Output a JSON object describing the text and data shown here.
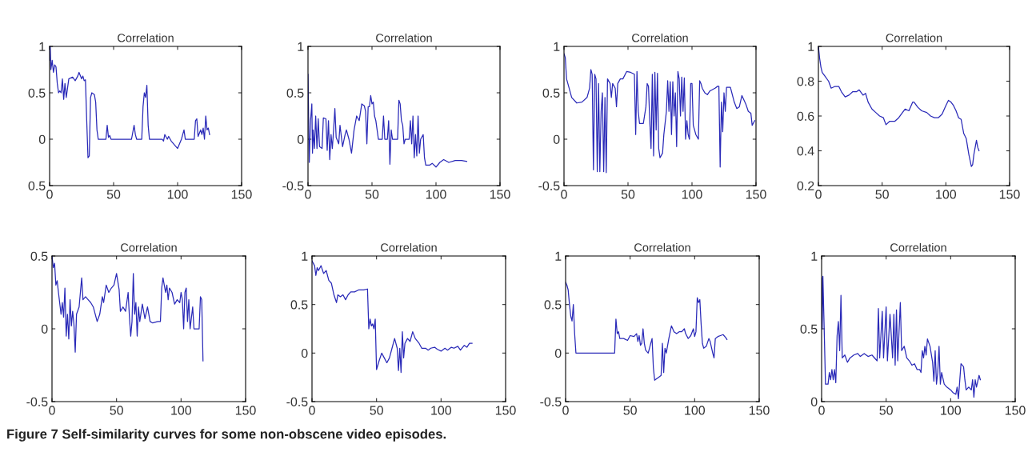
{
  "chart_data": [
    {
      "type": "line",
      "title": "Correlation",
      "xlim": [
        0,
        150
      ],
      "ylim": [
        -0.5,
        1
      ],
      "xticks": [
        0,
        50,
        100,
        150
      ],
      "yticks": [
        {
          "value": -0.5,
          "label": "0.5"
        },
        0,
        0.5,
        1
      ],
      "series": [
        {
          "color": "#2a2ab8",
          "x": [
            0,
            0.5,
            1,
            2,
            3,
            4,
            5,
            6,
            7,
            8,
            9,
            10,
            11,
            12,
            13,
            15,
            18,
            20,
            22,
            23,
            25,
            26,
            27,
            28,
            29,
            30,
            31,
            32,
            33,
            35,
            36,
            37,
            38,
            44,
            45,
            46,
            47,
            48,
            64,
            66,
            67,
            68,
            72,
            73,
            74,
            75,
            76,
            77,
            78,
            88,
            89,
            90,
            92,
            93,
            95,
            100,
            103,
            105,
            106,
            113,
            114,
            115,
            116,
            118,
            119,
            120,
            121,
            122,
            123,
            124,
            125
          ],
          "values": [
            0.85,
            1.0,
            0.75,
            0.85,
            0.72,
            0.8,
            0.78,
            0.6,
            0.5,
            0.52,
            0.5,
            0.65,
            0.43,
            0.6,
            0.45,
            0.65,
            0.67,
            0.63,
            0.68,
            0.72,
            0.65,
            0.68,
            0.63,
            0.64,
            0.2,
            -0.2,
            -0.18,
            0.45,
            0.5,
            0.48,
            0.4,
            0.1,
            0,
            0,
            0.15,
            0.02,
            0.04,
            0,
            0,
            0.15,
            0.05,
            0,
            0,
            0.35,
            0.5,
            0.45,
            0.58,
            0.15,
            0,
            0,
            -0.02,
            0.05,
            0,
            0.03,
            -0.02,
            -0.1,
            0,
            0.1,
            0,
            0,
            0.2,
            0.22,
            0.03,
            0.1,
            0.05,
            0.12,
            0,
            0.25,
            0.1,
            0.12,
            0.05
          ]
        }
      ]
    },
    {
      "type": "line",
      "title": "Correlation",
      "xlim": [
        0,
        150
      ],
      "ylim": [
        -0.5,
        1
      ],
      "xticks": [
        0,
        50,
        100,
        150
      ],
      "yticks": [
        -0.5,
        0,
        0.5,
        1
      ],
      "series": [
        {
          "color": "#2a2ab8",
          "x": [
            0,
            1,
            2,
            3,
            3.5,
            4,
            5,
            6,
            7,
            8,
            9,
            11,
            12,
            14,
            15,
            16,
            17,
            18,
            19,
            20,
            21,
            22,
            24,
            25,
            27,
            29,
            30,
            32,
            34,
            36,
            38,
            40,
            42,
            44,
            45,
            46,
            47,
            48,
            49,
            50,
            51,
            52,
            53,
            55,
            58,
            59,
            60,
            62,
            63,
            64,
            65,
            66,
            70,
            71,
            72,
            73,
            74,
            75,
            76,
            79,
            80,
            81,
            82,
            83,
            84,
            85,
            86,
            87,
            88,
            90,
            91,
            92,
            95,
            97,
            100,
            103,
            106,
            110,
            115,
            120,
            124
          ],
          "values": [
            0.7,
            -0.25,
            0.2,
            0.38,
            -0.15,
            0.1,
            -0.1,
            0.25,
            -0.1,
            0.22,
            -0.08,
            -0.1,
            0.23,
            0.22,
            -0.12,
            0.2,
            -0.22,
            0.05,
            -0.1,
            0.1,
            0.33,
            0.02,
            -0.05,
            0.15,
            -0.08,
            0.05,
            0.1,
            0,
            -0.15,
            0.1,
            0.25,
            0.2,
            0.38,
            0.36,
            0.3,
            -0.05,
            0.35,
            0.35,
            0.47,
            0.38,
            0.4,
            0.25,
            0.2,
            0,
            0,
            0.25,
            0,
            0,
            0.2,
            -0.27,
            0.1,
            0,
            0,
            0.42,
            0.38,
            0.2,
            0.15,
            -0.05,
            0,
            0,
            0.2,
            -0.05,
            0.25,
            -0.2,
            0.05,
            -0.18,
            0.25,
            -0.15,
            0,
            0.05,
            -0.2,
            -0.28,
            -0.28,
            -0.26,
            -0.3,
            -0.25,
            -0.22,
            -0.25,
            -0.23,
            -0.23,
            -0.24
          ]
        }
      ]
    },
    {
      "type": "line",
      "title": "Correlation",
      "xlim": [
        0,
        150
      ],
      "ylim": [
        -0.5,
        1
      ],
      "xticks": [
        0,
        50,
        100,
        150
      ],
      "yticks": [
        -0.5,
        0,
        0.5,
        1
      ],
      "series": [
        {
          "color": "#2a2ab8",
          "x": [
            0,
            1,
            2,
            4,
            6,
            10,
            14,
            18,
            20,
            21,
            22,
            23,
            24,
            25,
            26,
            27,
            28,
            29,
            30,
            31,
            32,
            33,
            34,
            36,
            37,
            38,
            40,
            41,
            42,
            44,
            46,
            49,
            52,
            55,
            56,
            57,
            58,
            59,
            62,
            64,
            65,
            66,
            67,
            68,
            69,
            70,
            71,
            72,
            73,
            74,
            75,
            77,
            78,
            80,
            81,
            82,
            83,
            84,
            85,
            86,
            87,
            88,
            89,
            90,
            91,
            92,
            93,
            94,
            95,
            96,
            97,
            98,
            99,
            100,
            101,
            103,
            105,
            106,
            107,
            108,
            110,
            112,
            114,
            118,
            120,
            121,
            122,
            123,
            124,
            125,
            126,
            127,
            130,
            133,
            135,
            137,
            139,
            142,
            144,
            146,
            147,
            149
          ],
          "values": [
            0.92,
            0.88,
            0.65,
            0.55,
            0.45,
            0.39,
            0.4,
            0.45,
            0.55,
            0.75,
            0.7,
            -0.33,
            0.7,
            0.65,
            -0.35,
            0.6,
            -0.35,
            0.3,
            0.5,
            -0.35,
            0.45,
            -0.36,
            0.65,
            0.6,
            0.45,
            0.6,
            0.55,
            0.35,
            0.6,
            0.65,
            0.65,
            0.73,
            0.72,
            0.7,
            0.05,
            0.73,
            0.3,
            0.17,
            0.17,
            0.35,
            0.6,
            0.57,
            0.2,
            -0.1,
            0.7,
            -0.18,
            0.72,
            0.1,
            0.71,
            -0.1,
            -0.2,
            -0.15,
            0.05,
            0.3,
            0.63,
            0.3,
            0.62,
            0.05,
            0.62,
            0.25,
            0.5,
            -0.08,
            0.73,
            0.65,
            0.25,
            0.67,
            0.3,
            0.66,
            0,
            0.2,
            0.05,
            0,
            0.6,
            0.6,
            0.15,
            0.05,
            0,
            0.63,
            0.6,
            0.55,
            0.5,
            0.48,
            0.52,
            0.55,
            0.57,
            0.57,
            -0.3,
            0.4,
            0.08,
            0.5,
            0.3,
            0.56,
            0.56,
            0.4,
            0.33,
            0.35,
            0.47,
            0.38,
            0.3,
            0.28,
            0.15,
            0.2
          ]
        }
      ]
    },
    {
      "type": "line",
      "title": "Correlation",
      "xlim": [
        0,
        150
      ],
      "ylim": [
        0.2,
        1
      ],
      "xticks": [
        0,
        50,
        100,
        150
      ],
      "yticks": [
        0.2,
        0.4,
        0.6,
        0.8,
        1
      ],
      "series": [
        {
          "color": "#2a2ab8",
          "x": [
            0,
            1,
            2,
            3,
            5,
            8,
            10,
            13,
            16,
            18,
            21,
            24,
            27,
            30,
            32,
            35,
            37,
            39,
            42,
            45,
            48,
            51,
            53,
            56,
            60,
            63,
            66,
            68,
            71,
            74,
            75,
            78,
            81,
            85,
            88,
            91,
            94,
            97,
            100,
            102,
            104,
            106,
            108,
            110,
            112,
            114,
            116,
            118,
            120,
            121,
            122,
            123,
            124,
            125,
            126
          ],
          "values": [
            1.0,
            0.93,
            0.88,
            0.85,
            0.83,
            0.8,
            0.76,
            0.77,
            0.77,
            0.74,
            0.71,
            0.72,
            0.74,
            0.74,
            0.75,
            0.72,
            0.73,
            0.68,
            0.64,
            0.62,
            0.6,
            0.59,
            0.55,
            0.57,
            0.57,
            0.59,
            0.62,
            0.64,
            0.63,
            0.68,
            0.68,
            0.65,
            0.63,
            0.62,
            0.6,
            0.59,
            0.59,
            0.61,
            0.66,
            0.69,
            0.68,
            0.66,
            0.63,
            0.59,
            0.58,
            0.5,
            0.47,
            0.38,
            0.31,
            0.32,
            0.38,
            0.42,
            0.46,
            0.42,
            0.4
          ]
        }
      ]
    },
    {
      "type": "line",
      "title": "Correlation",
      "xlim": [
        0,
        150
      ],
      "ylim": [
        -0.5,
        0.5
      ],
      "xticks": [
        0,
        50,
        100,
        150
      ],
      "yticks": [
        -0.5,
        0,
        0.5
      ],
      "series": [
        {
          "color": "#2a2ab8",
          "x": [
            0,
            1,
            2,
            3,
            4,
            5,
            7,
            8,
            9,
            10,
            11,
            12,
            13,
            14,
            15,
            16,
            17,
            18,
            19,
            21,
            23,
            24,
            26,
            28,
            30,
            32,
            35,
            37,
            39,
            40,
            42,
            44,
            46,
            48,
            50,
            52,
            53,
            55,
            57,
            59,
            60,
            61,
            62,
            63,
            64,
            65,
            66,
            67,
            68,
            70,
            72,
            74,
            76,
            78,
            82,
            84,
            85,
            86,
            88,
            89,
            90,
            91,
            93,
            95,
            97,
            99,
            100,
            101,
            102,
            103,
            104,
            105,
            106,
            107,
            109,
            110,
            114,
            115,
            116,
            117
          ],
          "values": [
            0.5,
            0.42,
            0.45,
            0.3,
            0.33,
            0.25,
            0.1,
            0.18,
            0.08,
            0.28,
            -0.05,
            0.1,
            -0.07,
            0.2,
            0.02,
            0.12,
            0.03,
            -0.16,
            0.1,
            0.15,
            0.35,
            0.2,
            0.22,
            0.2,
            0.18,
            0.15,
            0.05,
            0.1,
            0.22,
            0.18,
            0.3,
            0.25,
            0.28,
            0.3,
            0.38,
            0.27,
            0.12,
            0.15,
            0.12,
            0.25,
            0.08,
            -0.05,
            0.05,
            0.38,
            0.1,
            0.18,
            -0.05,
            0.15,
            0.05,
            0.17,
            0.07,
            0.15,
            0.05,
            0.04,
            0.05,
            0.05,
            0.28,
            0.35,
            0.25,
            0.3,
            0.2,
            0.28,
            0.25,
            0.17,
            0.2,
            0.18,
            0.25,
            0.2,
            0,
            0.25,
            0.28,
            0.05,
            0.2,
            0.0,
            0.15,
            0,
            0,
            0.22,
            0.2,
            -0.22
          ]
        }
      ]
    },
    {
      "type": "line",
      "title": "Correlation",
      "xlim": [
        0,
        150
      ],
      "ylim": [
        -0.5,
        1
      ],
      "xticks": [
        0,
        50,
        100,
        150
      ],
      "yticks": [
        -0.5,
        0,
        0.5,
        1
      ],
      "series": [
        {
          "color": "#2a2ab8",
          "x": [
            0,
            2,
            3,
            4,
            5,
            7,
            9,
            11,
            13,
            15,
            17,
            19,
            20,
            22,
            24,
            26,
            28,
            30,
            33,
            36,
            40,
            43,
            44,
            45,
            46,
            47,
            48,
            49,
            50,
            52,
            54,
            56,
            58,
            60,
            62,
            64,
            66,
            67,
            68,
            69,
            70,
            71,
            72,
            74,
            76,
            78,
            80,
            83,
            85,
            88,
            90,
            92,
            95,
            97,
            100,
            103,
            105,
            108,
            110,
            113,
            115,
            118,
            120,
            122,
            124
          ],
          "values": [
            0.95,
            0.9,
            0.8,
            0.88,
            0.85,
            0.9,
            0.82,
            0.85,
            0.75,
            0.72,
            0.6,
            0.52,
            0.6,
            0.58,
            0.6,
            0.55,
            0.6,
            0.63,
            0.63,
            0.65,
            0.65,
            0.66,
            0.25,
            0.35,
            0.28,
            0.3,
            0.25,
            0.35,
            -0.17,
            -0.08,
            0,
            -0.05,
            -0.1,
            -0.05,
            0.05,
            0.15,
            0.05,
            -0.18,
            0.05,
            -0.2,
            0.22,
            -0.05,
            0.1,
            0.15,
            0.12,
            0.22,
            0.15,
            0.1,
            0.05,
            0.05,
            0.03,
            0.05,
            0.06,
            0.04,
            0.02,
            0.05,
            0.03,
            0.06,
            0.05,
            0.07,
            0.03,
            0.08,
            0.06,
            0.1,
            0.1
          ]
        }
      ]
    },
    {
      "type": "line",
      "title": "Correlation",
      "xlim": [
        0,
        150
      ],
      "ylim": [
        -0.5,
        1
      ],
      "xticks": [
        0,
        50,
        100,
        150
      ],
      "yticks": [
        -0.5,
        0,
        0.5,
        1
      ],
      "series": [
        {
          "color": "#2a2ab8",
          "x": [
            0,
            1,
            2,
            3,
            4,
            5,
            6,
            7,
            8,
            38,
            39,
            40,
            41,
            42,
            45,
            48,
            50,
            53,
            55,
            56,
            57,
            58,
            59,
            60,
            61,
            62,
            64,
            66,
            67,
            68,
            69,
            70,
            72,
            74,
            75,
            76,
            77,
            78,
            80,
            82,
            84,
            86,
            88,
            90,
            92,
            93,
            95,
            97,
            99,
            100,
            101,
            102,
            103,
            104,
            105,
            106,
            107,
            109,
            111,
            112,
            114,
            115,
            116,
            118,
            120,
            122,
            124,
            125
          ],
          "values": [
            0.73,
            0.7,
            0.65,
            0.5,
            0.38,
            0.33,
            0.5,
            0.2,
            0,
            0,
            0.35,
            0.2,
            0.22,
            0.15,
            0.15,
            0.13,
            0.18,
            0.17,
            0.2,
            0.12,
            0.18,
            0.08,
            0.1,
            0.25,
            0.1,
            0.03,
            0.0,
            0.1,
            0.15,
            -0.15,
            -0.28,
            -0.27,
            -0.25,
            -0.23,
            0.1,
            -0.2,
            0.05,
            0.0,
            0.15,
            0.28,
            0.22,
            0.2,
            0.22,
            0.22,
            0.25,
            0.2,
            0.15,
            0.18,
            0.25,
            0.17,
            0.22,
            0.57,
            0.52,
            0.55,
            0.3,
            0.1,
            0.05,
            0.07,
            0.15,
            0.12,
            0.0,
            -0.05,
            0.15,
            0.17,
            0.18,
            0.19,
            0.16,
            0.14
          ]
        }
      ]
    },
    {
      "type": "line",
      "title": "Correlation",
      "xlim": [
        0,
        150
      ],
      "ylim": [
        0,
        1
      ],
      "xticks": [
        0,
        50,
        100,
        150
      ],
      "yticks": [
        0,
        0.5,
        1
      ],
      "series": [
        {
          "color": "#2a2ab8",
          "x": [
            0,
            0.5,
            1,
            2,
            3,
            5,
            6,
            7,
            8,
            9,
            10,
            11,
            12,
            13,
            14,
            15,
            16,
            18,
            20,
            22,
            25,
            28,
            30,
            33,
            36,
            39,
            42,
            43,
            44,
            45,
            47,
            48,
            50,
            51,
            53,
            55,
            56,
            57,
            58,
            59,
            61,
            62,
            64,
            66,
            68,
            70,
            72,
            74,
            76,
            77,
            78,
            79,
            80,
            81,
            82,
            84,
            86,
            87,
            88,
            89,
            90,
            91,
            92,
            93,
            95,
            97,
            100,
            102,
            104,
            105,
            106,
            108,
            110,
            111,
            112,
            114,
            116,
            117,
            118,
            119,
            120,
            122,
            123
          ],
          "values": [
            0.85,
            0.5,
            0.86,
            0.5,
            0.12,
            0.12,
            0.2,
            0.15,
            0.22,
            0.15,
            0.22,
            0.13,
            0.45,
            0.55,
            0.35,
            0.73,
            0.3,
            0.32,
            0.27,
            0.3,
            0.32,
            0.33,
            0.31,
            0.33,
            0.31,
            0.32,
            0.29,
            0.28,
            0.64,
            0.3,
            0.62,
            0.3,
            0.65,
            0.28,
            0.6,
            0.3,
            0.6,
            0.25,
            0.63,
            0.28,
            0.68,
            0.35,
            0.38,
            0.3,
            0.28,
            0.25,
            0.26,
            0.22,
            0.22,
            0.2,
            0.35,
            0.3,
            0.38,
            0.32,
            0.43,
            0.38,
            0.27,
            0.14,
            0.35,
            0.12,
            0.2,
            0.38,
            0.12,
            0.2,
            0.12,
            0.1,
            0.08,
            0.06,
            0.05,
            0.1,
            0.02,
            0.26,
            0.24,
            0.15,
            0.08,
            0.1,
            0.08,
            0.15,
            0.03,
            0.15,
            0.1,
            0.18,
            0.15
          ]
        }
      ],
      "annotations": [
        "Figure 7 Self-similarity curves for some non-obscene video episodes."
      ]
    }
  ]
}
